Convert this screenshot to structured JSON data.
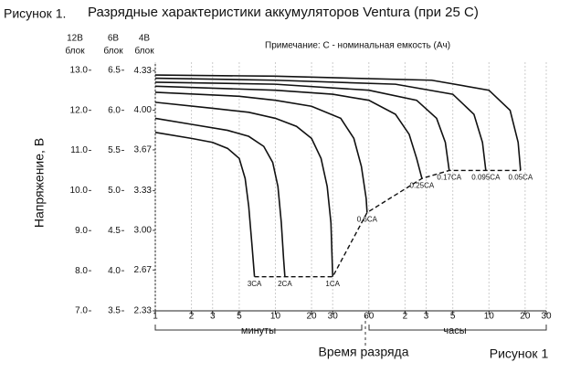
{
  "chart_data": {
    "type": "line",
    "figure_label": "Рисунок 1.",
    "title": "Разрядные характеристики аккумуляторов Ventura (при 25 С)",
    "note": "Примечание: С - номинальная емкость (Ач)",
    "ylabel": "Напряжение, В",
    "axis_headers": [
      "12В",
      "6В",
      "4В"
    ],
    "axis_header_sub": [
      "блок",
      "блок",
      "блок"
    ],
    "xlabel": "Время разряда",
    "x_units": [
      "минуты",
      "часы"
    ],
    "footer": "Рисунок 1",
    "xscale": "log",
    "grid": true,
    "xlim": [
      1,
      1800
    ],
    "xticks": [
      1,
      2,
      3,
      5,
      10,
      20,
      30,
      60,
      {
        "value": 120,
        "label": "2"
      },
      {
        "value": 180,
        "label": "3"
      },
      {
        "value": 300,
        "label": "5"
      },
      {
        "value": 600,
        "label": "10"
      },
      {
        "value": 1200,
        "label": "20"
      },
      {
        "value": 1800,
        "label": "30"
      }
    ],
    "ylim": [
      7,
      13.2
    ],
    "yticks": [
      {
        "value": 7,
        "label": "7.0"
      },
      {
        "value": 8,
        "label": "8.0"
      },
      {
        "value": 9,
        "label": "9.0"
      },
      {
        "value": 10,
        "label": "10.0"
      },
      {
        "value": 11,
        "label": "11.0"
      },
      {
        "value": 12,
        "label": "12.0"
      },
      {
        "value": 13,
        "label": "13.0"
      }
    ],
    "y6lim": [
      3.5,
      6.6
    ],
    "y6ticks": [
      3.5,
      {
        "value": 4,
        "label": "4.0"
      },
      4.5,
      {
        "value": 5,
        "label": "5.0"
      },
      5.5,
      {
        "value": 6,
        "label": "6.0"
      },
      6.5
    ],
    "y4lim": [
      2.33,
      4.4
    ],
    "y4ticks": [
      2.33,
      2.67,
      {
        "value": 3,
        "label": "3.00"
      },
      3.33,
      3.67,
      {
        "value": 4,
        "label": "4.00"
      },
      4.33
    ],
    "series": [
      {
        "name": "3CA",
        "color": "#111111",
        "x": [
          1,
          2,
          3,
          4,
          5,
          5.6,
          6,
          6.4,
          6.7
        ],
        "values": [
          11.45,
          11.3,
          11.2,
          11.05,
          10.8,
          10.3,
          9.6,
          8.6,
          7.85
        ]
      },
      {
        "name": "2CA",
        "color": "#111111",
        "x": [
          1,
          2,
          4,
          6,
          8,
          9.5,
          10.5,
          11.2,
          11.7,
          12
        ],
        "values": [
          11.8,
          11.65,
          11.5,
          11.35,
          11.1,
          10.7,
          10.1,
          9.2,
          8.3,
          7.85
        ]
      },
      {
        "name": "1CA",
        "color": "#111111",
        "x": [
          1,
          3,
          6,
          10,
          15,
          20,
          24,
          27,
          29,
          30
        ],
        "values": [
          12.2,
          12.05,
          11.95,
          11.8,
          11.6,
          11.3,
          10.8,
          10.1,
          9.2,
          7.85
        ]
      },
      {
        "name": "0.6CA",
        "color": "#111111",
        "x": [
          1,
          5,
          10,
          20,
          35,
          45,
          52,
          57,
          58
        ],
        "values": [
          12.45,
          12.35,
          12.25,
          12.1,
          11.8,
          11.3,
          10.6,
          9.8,
          9.45
        ]
      },
      {
        "name": "0.25CA",
        "color": "#111111",
        "x": [
          1,
          10,
          30,
          60,
          100,
          130,
          150,
          166
        ],
        "values": [
          12.6,
          12.5,
          12.4,
          12.25,
          11.9,
          11.4,
          10.8,
          10.3
        ]
      },
      {
        "name": "0.17CA",
        "color": "#111111",
        "x": [
          1,
          10,
          60,
          150,
          220,
          260,
          280
        ],
        "values": [
          12.7,
          12.65,
          12.5,
          12.25,
          11.8,
          11.2,
          10.5
        ]
      },
      {
        "name": "0.095CA",
        "color": "#111111",
        "x": [
          1,
          10,
          100,
          300,
          450,
          530,
          565
        ],
        "values": [
          12.8,
          12.75,
          12.65,
          12.4,
          11.9,
          11.2,
          10.5
        ]
      },
      {
        "name": "0.05CA",
        "color": "#111111",
        "x": [
          1,
          10,
          200,
          600,
          900,
          1050,
          1100
        ],
        "values": [
          12.88,
          12.85,
          12.75,
          12.5,
          12.0,
          11.2,
          10.5
        ]
      }
    ]
  }
}
